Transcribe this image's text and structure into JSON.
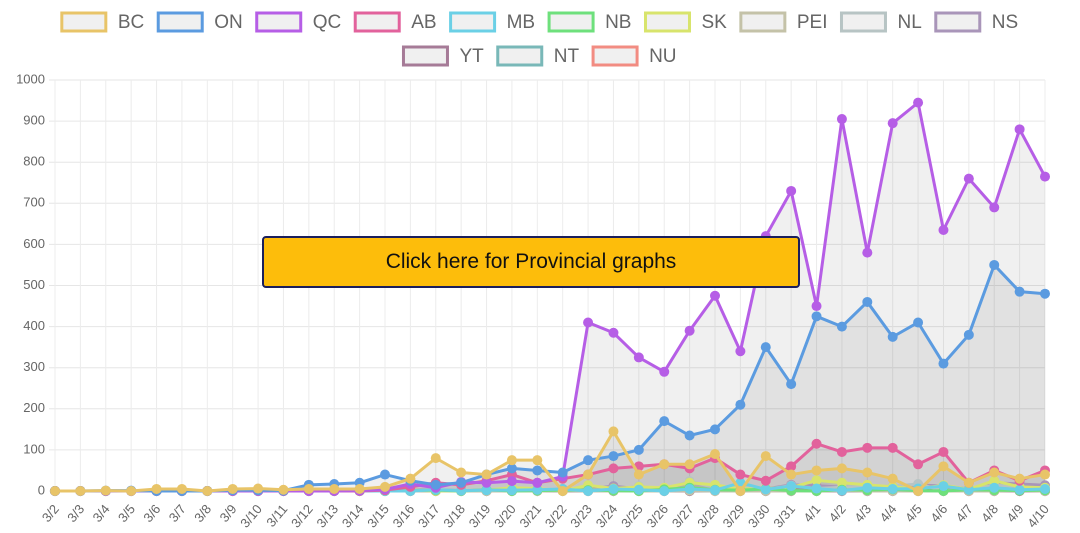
{
  "chart_data": {
    "type": "line",
    "categories": [
      "3/2",
      "3/3",
      "3/4",
      "3/5",
      "3/6",
      "3/7",
      "3/8",
      "3/9",
      "3/10",
      "3/11",
      "3/12",
      "3/13",
      "3/14",
      "3/15",
      "3/16",
      "3/17",
      "3/18",
      "3/19",
      "3/20",
      "3/21",
      "3/22",
      "3/23",
      "3/24",
      "3/25",
      "3/26",
      "3/27",
      "3/28",
      "3/29",
      "3/30",
      "3/31",
      "4/1",
      "4/2",
      "4/3",
      "4/4",
      "4/5",
      "4/6",
      "4/7",
      "4/8",
      "4/9",
      "4/10"
    ],
    "series": [
      {
        "name": "BC",
        "color": "#e8c468",
        "values": [
          0,
          0,
          1,
          0,
          5,
          5,
          0,
          5,
          6,
          3,
          5,
          5,
          5,
          10,
          30,
          80,
          45,
          40,
          75,
          75,
          0,
          40,
          145,
          40,
          65,
          65,
          90,
          0,
          85,
          40,
          50,
          55,
          45,
          30,
          0,
          60,
          20,
          45,
          30,
          40
        ]
      },
      {
        "name": "ON",
        "color": "#5b9be0",
        "values": [
          0,
          0,
          1,
          1,
          0,
          0,
          0,
          2,
          2,
          1,
          15,
          17,
          20,
          40,
          25,
          15,
          20,
          40,
          55,
          50,
          45,
          75,
          85,
          100,
          170,
          135,
          150,
          210,
          350,
          260,
          425,
          400,
          460,
          375,
          410,
          310,
          380,
          550,
          485,
          480
        ]
      },
      {
        "name": "QC",
        "color": "#b65ee6",
        "values": [
          0,
          0,
          0,
          0,
          0,
          0,
          0,
          0,
          0,
          0,
          0,
          0,
          1,
          4,
          17,
          8,
          22,
          20,
          24,
          20,
          35,
          410,
          385,
          325,
          290,
          390,
          475,
          340,
          620,
          730,
          450,
          905,
          580,
          895,
          945,
          635,
          760,
          690,
          880,
          765
        ]
      },
      {
        "name": "AB",
        "color": "#e2629c",
        "values": [
          0,
          0,
          0,
          0,
          0,
          0,
          0,
          0,
          0,
          0,
          0,
          0,
          0,
          2,
          10,
          20,
          15,
          25,
          40,
          20,
          30,
          40,
          55,
          60,
          65,
          55,
          80,
          40,
          25,
          60,
          115,
          95,
          105,
          105,
          65,
          95,
          20,
          50,
          25,
          50
        ]
      },
      {
        "name": "MB",
        "color": "#6bd0e6",
        "values": [
          0,
          0,
          0,
          0,
          0,
          0,
          0,
          0,
          0,
          0,
          0,
          0,
          0,
          0,
          0,
          3,
          1,
          2,
          2,
          3,
          5,
          0,
          5,
          3,
          0,
          5,
          2,
          20,
          4,
          12,
          6,
          1,
          8,
          5,
          6,
          12,
          3,
          8,
          3,
          5
        ]
      },
      {
        "name": "NB",
        "color": "#6ee07c",
        "values": [
          0,
          0,
          0,
          0,
          0,
          0,
          0,
          0,
          0,
          0,
          0,
          0,
          0,
          0,
          1,
          2,
          0,
          3,
          0,
          1,
          2,
          2,
          1,
          0,
          4,
          8,
          3,
          2,
          5,
          1,
          0,
          3,
          2,
          4,
          1,
          0,
          3,
          2,
          1,
          2
        ]
      },
      {
        "name": "SK",
        "color": "#d8e46c",
        "values": [
          0,
          0,
          0,
          0,
          0,
          0,
          0,
          0,
          0,
          0,
          0,
          0,
          0,
          0,
          2,
          0,
          1,
          2,
          8,
          6,
          0,
          14,
          6,
          10,
          8,
          20,
          15,
          5,
          6,
          8,
          26,
          20,
          15,
          10,
          5,
          14,
          4,
          25,
          10,
          8
        ]
      },
      {
        "name": "PEI",
        "color": "#c4c2a8",
        "values": [
          0,
          0,
          0,
          0,
          0,
          0,
          0,
          0,
          0,
          0,
          0,
          0,
          0,
          0,
          0,
          1,
          0,
          0,
          0,
          0,
          1,
          0,
          0,
          0,
          0,
          1,
          0,
          0,
          0,
          0,
          0,
          1,
          0,
          0,
          0,
          0,
          0,
          0,
          1,
          0
        ]
      },
      {
        "name": "NL",
        "color": "#b7c4c4",
        "values": [
          0,
          0,
          0,
          0,
          0,
          0,
          0,
          0,
          0,
          0,
          0,
          0,
          0,
          0,
          0,
          1,
          0,
          0,
          1,
          0,
          3,
          3,
          3,
          12,
          3,
          24,
          8,
          10,
          4,
          13,
          6,
          9,
          11,
          12,
          17,
          1,
          4,
          14,
          11,
          2
        ]
      },
      {
        "name": "NS",
        "color": "#a995b9",
        "values": [
          0,
          0,
          0,
          0,
          0,
          0,
          0,
          0,
          0,
          0,
          0,
          0,
          0,
          0,
          2,
          3,
          1,
          2,
          3,
          1,
          5,
          5,
          12,
          5,
          3,
          3,
          5,
          7,
          5,
          15,
          13,
          9,
          11,
          10,
          15,
          12,
          5,
          20,
          17,
          14
        ]
      },
      {
        "name": "YT",
        "color": "#a67b97",
        "values": [
          0,
          0,
          0,
          0,
          0,
          0,
          0,
          0,
          0,
          0,
          0,
          0,
          0,
          0,
          0,
          0,
          0,
          0,
          0,
          2,
          0,
          0,
          0,
          0,
          0,
          0,
          1,
          0,
          0,
          0,
          0,
          0,
          0,
          0,
          0,
          0,
          0,
          0,
          0,
          0
        ]
      },
      {
        "name": "NT",
        "color": "#79b8b8",
        "values": [
          0,
          0,
          0,
          0,
          0,
          0,
          0,
          0,
          0,
          0,
          0,
          0,
          0,
          0,
          0,
          0,
          0,
          0,
          0,
          1,
          0,
          0,
          0,
          0,
          0,
          0,
          0,
          0,
          0,
          0,
          0,
          0,
          0,
          0,
          0,
          0,
          0,
          0,
          0,
          0
        ]
      },
      {
        "name": "NU",
        "color": "#f28c82",
        "values": [
          0,
          0,
          0,
          0,
          0,
          0,
          0,
          0,
          0,
          0,
          0,
          0,
          0,
          0,
          0,
          0,
          0,
          0,
          0,
          0,
          0,
          0,
          0,
          0,
          0,
          0,
          0,
          0,
          0,
          0,
          0,
          0,
          0,
          0,
          0,
          0,
          0,
          0,
          0,
          0
        ]
      }
    ],
    "ylim": [
      0,
      1000
    ],
    "yticks": [
      0,
      100,
      200,
      300,
      400,
      500,
      600,
      700,
      800,
      900,
      1000
    ],
    "grid": true,
    "fill": true,
    "fill_color": "rgba(0,0,0,0.06)",
    "legend": "top"
  },
  "button": {
    "label": "Click here for Provincial graphs"
  }
}
